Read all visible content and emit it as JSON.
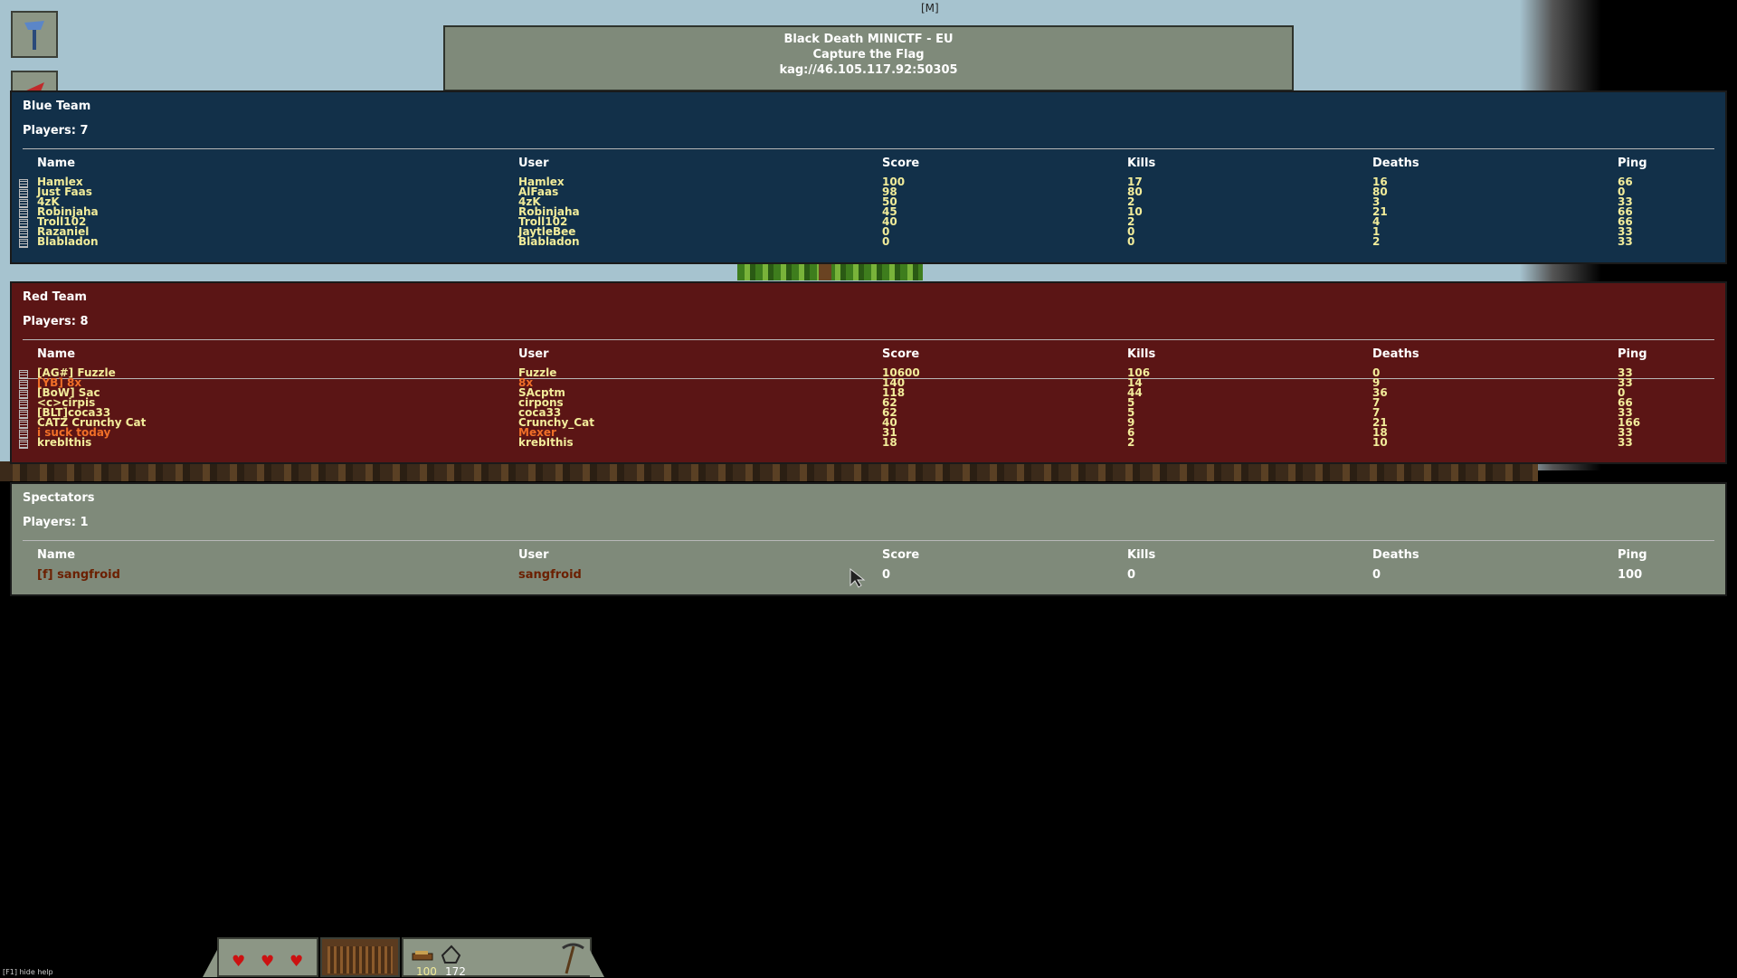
{
  "top_hint": "[M]",
  "server": {
    "name": "Black Death MINICTF - EU",
    "mode": "Capture the Flag",
    "address": "kag://46.105.117.92:50305"
  },
  "columns": {
    "name": "Name",
    "user": "User",
    "score": "Score",
    "kills": "Kills",
    "deaths": "Deaths",
    "ping": "Ping"
  },
  "blue_team": {
    "title": "Blue Team",
    "players": "Players: 7",
    "color": "#123049",
    "rows": [
      {
        "name": "Hamlex",
        "user": "Hamlex",
        "score": "100",
        "kills": "17",
        "deaths": "16",
        "ping": "66"
      },
      {
        "name": "Just Faas",
        "user": "AlFaas",
        "score": "98",
        "kills": "80",
        "deaths": "80",
        "ping": "0"
      },
      {
        "name": "4zK",
        "user": "4zK",
        "score": "50",
        "kills": "2",
        "deaths": "3",
        "ping": "33"
      },
      {
        "name": "Robinjaha",
        "user": "Robinjaha",
        "score": "45",
        "kills": "10",
        "deaths": "21",
        "ping": "66"
      },
      {
        "name": "Troll102",
        "user": "Troll102",
        "score": "40",
        "kills": "2",
        "deaths": "4",
        "ping": "66"
      },
      {
        "name": "Razaniel",
        "user": "JaytleBee",
        "score": "0",
        "kills": "0",
        "deaths": "1",
        "ping": "33"
      },
      {
        "name": "Blabladon",
        "user": "Blabladon",
        "score": "0",
        "kills": "0",
        "deaths": "2",
        "ping": "33"
      }
    ]
  },
  "red_team": {
    "title": "Red Team",
    "players": "Players: 8",
    "color": "#5b1515",
    "rows": [
      {
        "name": "[AG#] Fuzzle",
        "user": "Fuzzle",
        "score": "10600",
        "kills": "106",
        "deaths": "0",
        "ping": "33"
      },
      {
        "name": "[YB] 8x",
        "user": "8x",
        "score": "140",
        "kills": "14",
        "deaths": "9",
        "ping": "33"
      },
      {
        "name": "[BoW] Sac",
        "user": "SAcptm",
        "score": "118",
        "kills": "44",
        "deaths": "36",
        "ping": "0"
      },
      {
        "name": "<c>cirpis",
        "user": "cirpons",
        "score": "62",
        "kills": "5",
        "deaths": "7",
        "ping": "66"
      },
      {
        "name": "[BLT]coca33",
        "user": "coca33",
        "score": "62",
        "kills": "5",
        "deaths": "7",
        "ping": "33"
      },
      {
        "name": "CATZ Crunchy Cat",
        "user": "Crunchy_Cat",
        "score": "40",
        "kills": "9",
        "deaths": "21",
        "ping": "166"
      },
      {
        "name": "i suck today",
        "user": "Mexer",
        "score": "31",
        "kills": "6",
        "deaths": "18",
        "ping": "33"
      },
      {
        "name": "kreblthis",
        "user": "krebIthis",
        "score": "18",
        "kills": "2",
        "deaths": "10",
        "ping": "33"
      }
    ]
  },
  "spectators": {
    "title": "Spectators",
    "players": "Players: 1",
    "rows": [
      {
        "name": "[f] sangfroid",
        "user": "sangfroid",
        "score": "0",
        "kills": "0",
        "deaths": "0",
        "ping": "100"
      }
    ]
  },
  "hud": {
    "coins": "100",
    "stone": "172",
    "hearts": [
      "heart-icon",
      "heart-icon",
      "heart-icon"
    ]
  },
  "help_text": "[F1] hide help"
}
